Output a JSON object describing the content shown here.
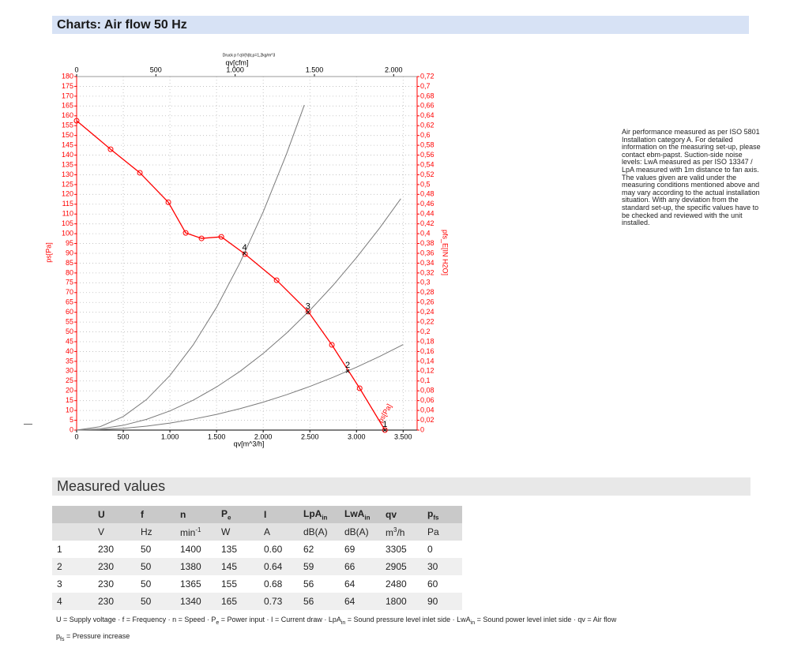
{
  "header": {
    "title": "Charts: Air flow 50 Hz"
  },
  "chart": {
    "type": "line",
    "caption": "Druck p f qV(h)b;ρ=1,2kg/m^3",
    "x_label": "qv[m^3/h]",
    "x2_label": "qv[cfm]",
    "y_label": "ps[Pa]",
    "y2_label": "pfs_E[IN H2O]",
    "xlim": [
      0,
      3650
    ],
    "xticks": [
      0,
      500,
      {
        "value": 1000,
        "label": "1.000"
      },
      {
        "value": 1500,
        "label": "1.500"
      },
      {
        "value": 2000,
        "label": "2.000"
      },
      {
        "value": 2500,
        "label": "2.500"
      },
      {
        "value": 3000,
        "label": "3.000"
      },
      {
        "value": 3500,
        "label": "3.500"
      }
    ],
    "x2lim": [
      0,
      2148
    ],
    "x2ticks": [
      0,
      500,
      {
        "value": 1000,
        "label": "1.000"
      },
      {
        "value": 1500,
        "label": "1.500"
      },
      {
        "value": 2000,
        "label": "2.000"
      }
    ],
    "ylim": [
      0,
      180
    ],
    "yticks": [
      0,
      5,
      10,
      15,
      20,
      25,
      30,
      35,
      40,
      45,
      50,
      55,
      60,
      65,
      70,
      75,
      80,
      85,
      90,
      95,
      100,
      105,
      110,
      115,
      120,
      125,
      130,
      135,
      140,
      145,
      150,
      155,
      160,
      165,
      170,
      175,
      180
    ],
    "y2lim": [
      0,
      0.72
    ],
    "y2ticks": [
      0,
      {
        "value": 0.02,
        "label": "0,02"
      },
      {
        "value": 0.04,
        "label": "0,04"
      },
      {
        "value": 0.06,
        "label": "0,06"
      },
      {
        "value": 0.08,
        "label": "0,08"
      },
      {
        "value": 0.1,
        "label": "0,1"
      },
      {
        "value": 0.12,
        "label": "0,12"
      },
      {
        "value": 0.14,
        "label": "0,14"
      },
      {
        "value": 0.16,
        "label": "0,16"
      },
      {
        "value": 0.18,
        "label": "0,18"
      },
      {
        "value": 0.2,
        "label": "0,2"
      },
      {
        "value": 0.22,
        "label": "0,22"
      },
      {
        "value": 0.24,
        "label": "0,24"
      },
      {
        "value": 0.26,
        "label": "0,26"
      },
      {
        "value": 0.28,
        "label": "0,28"
      },
      {
        "value": 0.3,
        "label": "0,3"
      },
      {
        "value": 0.32,
        "label": "0,32"
      },
      {
        "value": 0.34,
        "label": "0,34"
      },
      {
        "value": 0.36,
        "label": "0,36"
      },
      {
        "value": 0.38,
        "label": "0,38"
      },
      {
        "value": 0.4,
        "label": "0,4"
      },
      {
        "value": 0.42,
        "label": "0,42"
      },
      {
        "value": 0.44,
        "label": "0,44"
      },
      {
        "value": 0.46,
        "label": "0,46"
      },
      {
        "value": 0.48,
        "label": "0,48"
      },
      {
        "value": 0.5,
        "label": "0,5"
      },
      {
        "value": 0.52,
        "label": "0,52"
      },
      {
        "value": 0.54,
        "label": "0,54"
      },
      {
        "value": 0.56,
        "label": "0,56"
      },
      {
        "value": 0.58,
        "label": "0,58"
      },
      {
        "value": 0.6,
        "label": "0,6"
      },
      {
        "value": 0.62,
        "label": "0,62"
      },
      {
        "value": 0.64,
        "label": "0,64"
      },
      {
        "value": 0.66,
        "label": "0,66"
      },
      {
        "value": 0.68,
        "label": "0,68"
      },
      {
        "value": 0.7,
        "label": "0,7"
      },
      {
        "value": 0.72,
        "label": "0,72"
      }
    ],
    "grid": true,
    "series": [
      {
        "name": "ps[Pa]",
        "color": "#ff0000",
        "x": [
          0,
          364,
          678,
          983,
          1169,
          1339,
          1551,
          1805,
          2144,
          2483,
          2736,
          3034,
          3305
        ],
        "values": [
          157.5,
          143,
          131,
          116,
          100.4,
          97.6,
          98.4,
          89.6,
          76.3,
          60.3,
          43.4,
          21.3,
          0
        ]
      },
      {
        "color": "#7a7a7a",
        "x": [
          0,
          250,
          500,
          750,
          1000,
          1250,
          1500,
          1750,
          2000,
          2250,
          2441
        ],
        "values": [
          0,
          1.7,
          6.9,
          15.6,
          27.8,
          43.4,
          62.5,
          85.1,
          111.1,
          140.6,
          165.5
        ]
      },
      {
        "color": "#7a7a7a",
        "x": [
          0,
          250,
          500,
          750,
          1000,
          1250,
          1500,
          1750,
          2000,
          2250,
          2500,
          2750,
          3000,
          3250,
          3475
        ],
        "values": [
          0,
          0.61,
          2.44,
          5.49,
          9.76,
          15.24,
          21.95,
          29.87,
          39.02,
          49.39,
          60.97,
          73.77,
          87.8,
          103,
          117.8
        ]
      },
      {
        "color": "#7a7a7a",
        "x": [
          0,
          250,
          500,
          750,
          1000,
          1250,
          1500,
          1750,
          2000,
          2250,
          2500,
          2750,
          3000,
          3250,
          3500
        ],
        "values": [
          0,
          0.22,
          0.89,
          2,
          3.56,
          5.55,
          8,
          10.89,
          14.22,
          18,
          22.22,
          26.89,
          32,
          37.55,
          43.55
        ]
      }
    ],
    "operating_points": [
      {
        "label": "1",
        "x": 3305,
        "y": 0
      },
      {
        "label": "2",
        "x": 2905,
        "y": 30
      },
      {
        "label": "3",
        "x": 2480,
        "y": 60
      },
      {
        "label": "4",
        "x": 1800,
        "y": 90
      }
    ]
  },
  "note": {
    "lines": [
      "Air performance measured as per ISO 5801",
      "Installation category A. For detailed",
      "information on the measuring set-up, please",
      "contact ebm-papst. Suction-side noise",
      "levels: LwA measured as per ISO 13347 /",
      "LpA measured with 1m distance to fan axis.",
      "The values given are valid under the",
      "measuring conditions mentioned above and",
      "may vary according to the actual installation",
      "situation. With any deviation from the",
      "standard set-up, the specific values have to",
      "be checked and reviewed with the unit",
      "installed."
    ]
  },
  "measured": {
    "title": "Measured values",
    "header": [
      null,
      [
        "U"
      ],
      [
        "f"
      ],
      [
        "n"
      ],
      [
        "P",
        {
          "sub": "e"
        }
      ],
      [
        "I"
      ],
      [
        "LpA",
        {
          "sub": "in"
        }
      ],
      [
        "LwA",
        {
          "sub": "in"
        }
      ],
      [
        "qv"
      ],
      [
        "p",
        {
          "sub": "fs"
        }
      ]
    ],
    "units": [
      null,
      [
        "V"
      ],
      [
        "Hz"
      ],
      [
        "min",
        {
          "sup": "-1"
        }
      ],
      [
        "W"
      ],
      [
        "A"
      ],
      [
        "dB(A)"
      ],
      [
        "dB(A)"
      ],
      [
        "m",
        {
          "sup": "3"
        },
        "/h"
      ],
      [
        "Pa"
      ]
    ],
    "rows": [
      [
        "1",
        "230",
        "50",
        "1400",
        "135",
        "0.60",
        "62",
        "69",
        "3305",
        "0"
      ],
      [
        "2",
        "230",
        "50",
        "1380",
        "145",
        "0.64",
        "59",
        "66",
        "2905",
        "30"
      ],
      [
        "3",
        "230",
        "50",
        "1365",
        "155",
        "0.68",
        "56",
        "64",
        "2480",
        "60"
      ],
      [
        "4",
        "230",
        "50",
        "1340",
        "165",
        "0.73",
        "56",
        "64",
        "1800",
        "90"
      ]
    ],
    "footnote": [
      [
        "U = Supply voltage · f = Frequency · n = Speed · P",
        {
          "sub": "e"
        },
        " = Power input · I = Current draw · LpA",
        {
          "sub": "in"
        },
        " = Sound pressure level inlet side · LwA",
        {
          "sub": "in"
        },
        " = Sound power level inlet side · qv = Air flow"
      ],
      [
        "p",
        {
          "sub": "fs"
        },
        " = Pressure increase"
      ]
    ]
  }
}
